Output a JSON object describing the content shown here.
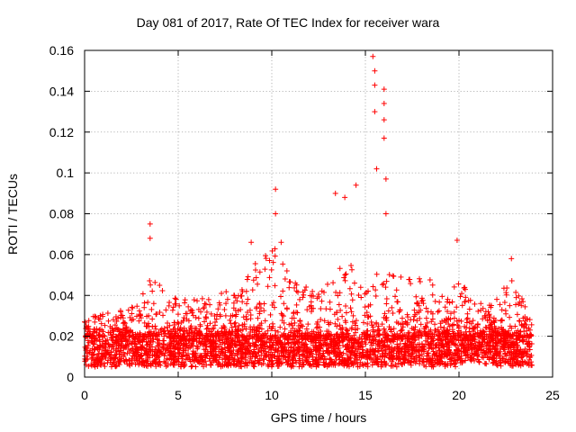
{
  "chart_data": {
    "type": "scatter",
    "title": "Day 081 of 2017, Rate Of TEC Index for receiver wara",
    "xlabel": "GPS time / hours",
    "ylabel": "ROTI / TECUs",
    "xlim": [
      0,
      25
    ],
    "ylim": [
      0,
      0.16
    ],
    "x_ticks": [
      0,
      5,
      10,
      15,
      20,
      25
    ],
    "x_tick_labels": [
      "0",
      "5",
      "10",
      "15",
      "20",
      "25"
    ],
    "y_ticks": [
      0,
      0.02,
      0.04,
      0.06,
      0.08,
      0.1,
      0.12,
      0.14,
      0.16
    ],
    "y_tick_labels": [
      "0",
      "0.02",
      "0.04",
      "0.06",
      "0.08",
      "0.1",
      "0.12",
      "0.14",
      "0.16"
    ],
    "grid": true,
    "marker": "+",
    "marker_color": "#ff0000",
    "x_data_range": [
      0,
      23.9
    ],
    "series": [
      {
        "name": "ROTI",
        "baseline_band": [
          0.005,
          0.02
        ],
        "notable_points": [
          {
            "x": 3.5,
            "y": 0.075
          },
          {
            "x": 3.5,
            "y": 0.068
          },
          {
            "x": 8.9,
            "y": 0.066
          },
          {
            "x": 10.2,
            "y": 0.092
          },
          {
            "x": 10.2,
            "y": 0.08
          },
          {
            "x": 10.5,
            "y": 0.066
          },
          {
            "x": 13.4,
            "y": 0.09
          },
          {
            "x": 13.9,
            "y": 0.088
          },
          {
            "x": 14.5,
            "y": 0.094
          },
          {
            "x": 15.4,
            "y": 0.157
          },
          {
            "x": 15.5,
            "y": 0.15
          },
          {
            "x": 15.5,
            "y": 0.143
          },
          {
            "x": 15.5,
            "y": 0.13
          },
          {
            "x": 15.6,
            "y": 0.102
          },
          {
            "x": 16.0,
            "y": 0.141
          },
          {
            "x": 16.0,
            "y": 0.134
          },
          {
            "x": 16.0,
            "y": 0.126
          },
          {
            "x": 16.0,
            "y": 0.117
          },
          {
            "x": 16.1,
            "y": 0.097
          },
          {
            "x": 16.1,
            "y": 0.08
          },
          {
            "x": 19.9,
            "y": 0.067
          },
          {
            "x": 22.8,
            "y": 0.058
          }
        ]
      }
    ]
  }
}
